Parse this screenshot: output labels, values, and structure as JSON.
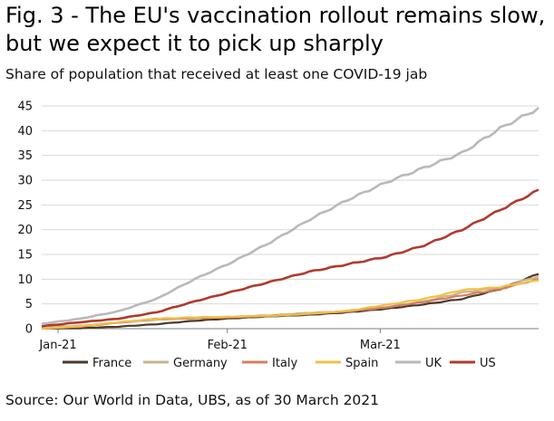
{
  "title_lines": [
    "Fig. 3 - The EU's vaccination rollout remains slow,",
    "but we expect it to pick up sharply"
  ],
  "subtitle": "Share of population that received at least one COVID-19 jab",
  "source": "Source: Our World in Data, UBS, as of 30 March 2021",
  "chart_data": {
    "type": "line",
    "title": "Fig. 3 - The EU's vaccination rollout remains slow, but we expect it to pick up sharply",
    "subtitle": "Share of population that received at least one COVID-19 jab",
    "xlabel": "",
    "ylabel": "",
    "x_ticks": [
      "Jan-21",
      "Feb-21",
      "Mar-21"
    ],
    "x_range": [
      "2020-12-29",
      "2021-03-30"
    ],
    "ylim": [
      0,
      45
    ],
    "y_ticks": [
      0,
      5,
      10,
      15,
      20,
      25,
      30,
      35,
      40,
      45
    ],
    "grid": "horizontal",
    "legend_position": "bottom",
    "series": [
      {
        "name": "France",
        "color": "#4a3a2c",
        "points": [
          [
            "2020-12-29",
            0.0
          ],
          [
            "2021-01-05",
            0.1
          ],
          [
            "2021-01-12",
            0.4
          ],
          [
            "2021-01-19",
            0.9
          ],
          [
            "2021-01-26",
            1.6
          ],
          [
            "2021-02-02",
            2.1
          ],
          [
            "2021-02-09",
            2.5
          ],
          [
            "2021-02-16",
            2.8
          ],
          [
            "2021-02-23",
            3.3
          ],
          [
            "2021-03-02",
            4.0
          ],
          [
            "2021-03-09",
            4.9
          ],
          [
            "2021-03-16",
            6.0
          ],
          [
            "2021-03-23",
            8.0
          ],
          [
            "2021-03-30",
            11.1
          ]
        ]
      },
      {
        "name": "Germany",
        "color": "#c8b48c",
        "points": [
          [
            "2020-12-29",
            0.3
          ],
          [
            "2021-01-05",
            0.6
          ],
          [
            "2021-01-12",
            1.2
          ],
          [
            "2021-01-19",
            1.8
          ],
          [
            "2021-01-26",
            2.1
          ],
          [
            "2021-02-02",
            2.4
          ],
          [
            "2021-02-09",
            2.7
          ],
          [
            "2021-02-16",
            3.2
          ],
          [
            "2021-02-23",
            3.5
          ],
          [
            "2021-03-02",
            4.3
          ],
          [
            "2021-03-09",
            5.5
          ],
          [
            "2021-03-16",
            7.3
          ],
          [
            "2021-03-23",
            8.3
          ],
          [
            "2021-03-30",
            10.6
          ]
        ]
      },
      {
        "name": "Italy",
        "color": "#d47f60",
        "points": [
          [
            "2020-12-29",
            0.0
          ],
          [
            "2021-01-05",
            0.4
          ],
          [
            "2021-01-12",
            1.2
          ],
          [
            "2021-01-19",
            2.0
          ],
          [
            "2021-01-26",
            2.1
          ],
          [
            "2021-02-02",
            2.3
          ],
          [
            "2021-02-09",
            2.6
          ],
          [
            "2021-02-16",
            3.0
          ],
          [
            "2021-02-23",
            3.5
          ],
          [
            "2021-03-02",
            4.3
          ],
          [
            "2021-03-09",
            5.4
          ],
          [
            "2021-03-16",
            6.7
          ],
          [
            "2021-03-23",
            8.0
          ],
          [
            "2021-03-30",
            10.0
          ]
        ]
      },
      {
        "name": "Spain",
        "color": "#f2c046",
        "points": [
          [
            "2020-12-29",
            0.0
          ],
          [
            "2021-01-05",
            0.5
          ],
          [
            "2021-01-12",
            1.3
          ],
          [
            "2021-01-19",
            2.0
          ],
          [
            "2021-01-26",
            2.3
          ],
          [
            "2021-02-02",
            2.4
          ],
          [
            "2021-02-09",
            2.6
          ],
          [
            "2021-02-16",
            3.0
          ],
          [
            "2021-02-23",
            3.6
          ],
          [
            "2021-03-02",
            4.8
          ],
          [
            "2021-03-09",
            6.0
          ],
          [
            "2021-03-16",
            7.8
          ],
          [
            "2021-03-23",
            8.4
          ],
          [
            "2021-03-30",
            9.8
          ]
        ]
      },
      {
        "name": "UK",
        "color": "#b9b9b9",
        "points": [
          [
            "2020-12-29",
            1.0
          ],
          [
            "2021-01-05",
            2.0
          ],
          [
            "2021-01-12",
            3.5
          ],
          [
            "2021-01-19",
            6.0
          ],
          [
            "2021-01-26",
            10.0
          ],
          [
            "2021-02-02",
            13.5
          ],
          [
            "2021-02-09",
            17.5
          ],
          [
            "2021-02-16",
            22.0
          ],
          [
            "2021-02-23",
            26.0
          ],
          [
            "2021-03-02",
            29.5
          ],
          [
            "2021-03-09",
            32.5
          ],
          [
            "2021-03-16",
            35.5
          ],
          [
            "2021-03-23",
            40.5
          ],
          [
            "2021-03-30",
            44.5
          ]
        ]
      },
      {
        "name": "US",
        "color": "#b03a2e",
        "points": [
          [
            "2020-12-29",
            0.5
          ],
          [
            "2021-01-05",
            1.3
          ],
          [
            "2021-01-12",
            2.0
          ],
          [
            "2021-01-19",
            3.3
          ],
          [
            "2021-01-26",
            5.5
          ],
          [
            "2021-02-02",
            7.5
          ],
          [
            "2021-02-09",
            9.5
          ],
          [
            "2021-02-16",
            11.5
          ],
          [
            "2021-02-23",
            13.0
          ],
          [
            "2021-03-02",
            14.5
          ],
          [
            "2021-03-09",
            16.8
          ],
          [
            "2021-03-16",
            20.0
          ],
          [
            "2021-03-23",
            24.0
          ],
          [
            "2021-03-30",
            28.0
          ]
        ]
      }
    ]
  }
}
